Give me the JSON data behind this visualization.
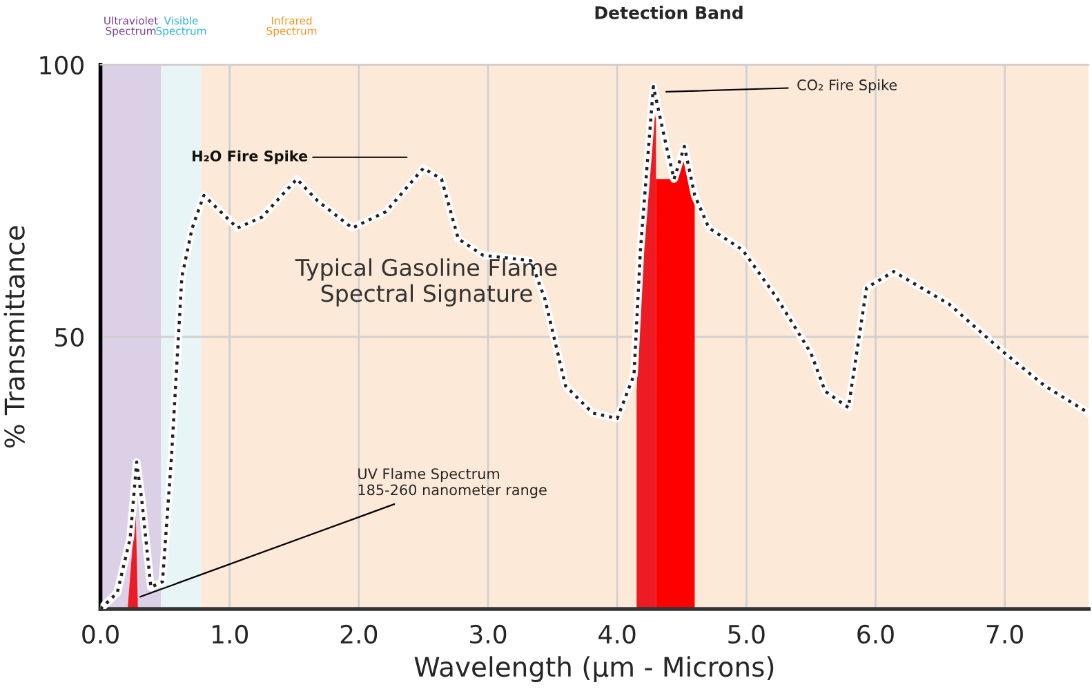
{
  "chart_data": {
    "type": "line",
    "xlabel": "Wavelength (µm - Microns)",
    "ylabel": "% Transmittance",
    "xlim": [
      0,
      7.65
    ],
    "ylim": [
      0,
      100
    ],
    "xticks": [
      {
        "value": 0,
        "label": "0.0"
      },
      {
        "value": 1,
        "label": "1.0"
      },
      {
        "value": 2,
        "label": "2.0"
      },
      {
        "value": 3,
        "label": "3.0"
      },
      {
        "value": 4,
        "label": "4.0"
      },
      {
        "value": 5,
        "label": "5.0"
      },
      {
        "value": 6,
        "label": "6.0"
      },
      {
        "value": 7,
        "label": "7.0"
      }
    ],
    "yticks": [
      50,
      100
    ],
    "grid": true,
    "marker": "none",
    "line_style": "dotted",
    "series": [
      {
        "type": "area",
        "color": "#ed1c24",
        "x": [
          0.21,
          0.25,
          0.27,
          0.29
        ],
        "values": [
          0,
          12,
          21,
          0
        ]
      },
      {
        "type": "area",
        "color": "#ed1c24",
        "x": [
          4.15,
          4.2,
          4.24,
          4.27,
          4.3
        ],
        "values": [
          40,
          70,
          88,
          93,
          90
        ]
      },
      {
        "type": "area",
        "color": "#ff0000",
        "x": [
          4.3,
          4.45,
          4.5,
          4.55,
          4.6
        ],
        "values": [
          79,
          79,
          83,
          82,
          76
        ]
      },
      {
        "color": "#231f20",
        "x": [
          0,
          0.13,
          0.23,
          0.28,
          0.32,
          0.39,
          0.48,
          0.55,
          0.63,
          0.71,
          0.8,
          0.93,
          1.06,
          1.25,
          1.52,
          1.68,
          1.95,
          2.21,
          2.5,
          2.64,
          2.77,
          2.96,
          3.33,
          3.44,
          3.6,
          3.81,
          4.0,
          4.13,
          4.18,
          4.28,
          4.39,
          4.44,
          4.52,
          4.6,
          4.71,
          4.97,
          5.24,
          5.5,
          5.61,
          5.79,
          5.93,
          6.14,
          6.57,
          7.0,
          7.31,
          7.65
        ],
        "values": [
          0,
          3,
          13,
          27,
          20,
          4,
          5,
          28,
          61,
          70,
          76,
          73,
          70,
          72,
          79,
          75,
          70,
          73,
          81,
          79,
          68,
          65,
          64,
          57,
          41,
          36,
          35,
          43,
          66,
          96,
          84,
          79,
          85,
          76,
          70,
          66,
          57,
          47,
          40,
          37,
          59,
          62,
          56,
          47,
          41,
          36
        ]
      }
    ],
    "bands": [
      {
        "axis": "x",
        "from": 0,
        "to": 0.47,
        "label": "Ultraviolet\nSpectrum",
        "color": "#dcd0e6"
      },
      {
        "axis": "x",
        "from": 0.47,
        "to": 0.78,
        "label": "Visible\nSpectrum",
        "color": "#e8f5f7"
      },
      {
        "axis": "x",
        "from": 0.78,
        "to": 7.65,
        "label": "Infrared\nSpectrum",
        "color": "#fde9d8"
      }
    ],
    "annotations": [
      {
        "text": "Detection Band",
        "x": 4.4,
        "y": 100
      },
      "H₂O Fire Spike",
      {
        "text": "CO₂ Fire Spike",
        "x": 4.35,
        "y": 95
      },
      {
        "text": "UV Flame Spectrum\n185-260 nanometer range",
        "x": 0.28,
        "y": 2
      },
      "Typical Gasoline Flame\nSpectral Signature"
    ]
  }
}
